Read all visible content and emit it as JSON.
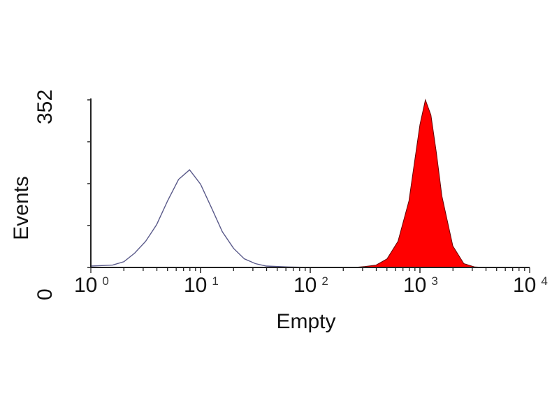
{
  "chart_data": {
    "type": "area",
    "title": "",
    "xlabel": "Empty",
    "ylabel": "Events",
    "xscale": "log",
    "xlim": [
      1,
      10000
    ],
    "ylim": [
      0,
      352
    ],
    "x_ticks": [
      {
        "base": "10",
        "exp": "0",
        "value": 1
      },
      {
        "base": "10",
        "exp": "1",
        "value": 10
      },
      {
        "base": "10",
        "exp": "2",
        "value": 100
      },
      {
        "base": "10",
        "exp": "3",
        "value": 1000
      },
      {
        "base": "10",
        "exp": "4",
        "value": 10000
      }
    ],
    "y_tick_labels": [
      "0",
      "352"
    ],
    "y_ticks": [
      0,
      88,
      176,
      264,
      352
    ],
    "grid": false,
    "series": [
      {
        "style": "outline",
        "color": "#5a5a8a",
        "x": [
          1,
          1.26,
          1.58,
          2,
          2.51,
          3.16,
          3.98,
          5.01,
          6.31,
          7.94,
          10,
          12.6,
          15.8,
          20,
          25.1,
          31.6,
          39.8,
          63.1,
          100
        ],
        "y": [
          3,
          4,
          5,
          12,
          30,
          55,
          90,
          140,
          185,
          205,
          175,
          125,
          75,
          40,
          18,
          8,
          3,
          1,
          0
        ]
      },
      {
        "style": "filled",
        "color": "#ff0000",
        "x": [
          251,
          316,
          398,
          501,
          631,
          794,
          891,
          1000,
          1122,
          1259,
          1413,
          1585,
          1995,
          2512,
          3162,
          3981
        ],
        "y": [
          0,
          2,
          5,
          18,
          55,
          140,
          220,
          300,
          352,
          320,
          240,
          150,
          45,
          8,
          1,
          0
        ]
      }
    ]
  }
}
